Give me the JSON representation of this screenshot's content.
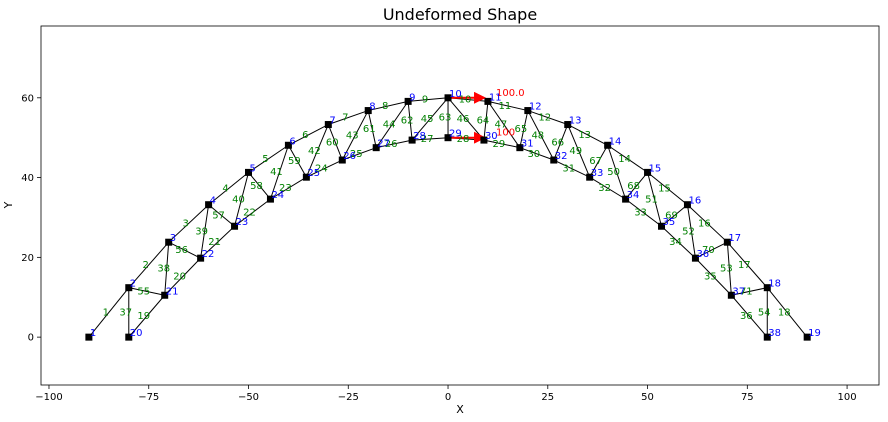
{
  "chart_data": {
    "type": "scatter",
    "title": "Undeformed Shape",
    "xlabel": "X",
    "ylabel": "Y",
    "xlim": [
      -102,
      108
    ],
    "ylim": [
      -12,
      78
    ],
    "xticks": [
      -100,
      -75,
      -50,
      -25,
      0,
      25,
      50,
      75,
      100
    ],
    "yticks": [
      0,
      20,
      40,
      60
    ],
    "xtick_labels": [
      "−100",
      "−75",
      "−50",
      "−25",
      "0",
      "25",
      "50",
      "75",
      "100"
    ],
    "ytick_labels": [
      "0",
      "20",
      "40",
      "60"
    ],
    "colors": {
      "node_marker": "#000000",
      "element_line": "#000000",
      "node_label": "#0000ff",
      "element_label": "#008000",
      "load": "#ff0000"
    },
    "nodes": [
      {
        "id": "1",
        "x": -90,
        "y": 0
      },
      {
        "id": "2",
        "x": -80,
        "y": 12.4
      },
      {
        "id": "3",
        "x": -70,
        "y": 23.8
      },
      {
        "id": "4",
        "x": -60,
        "y": 33.2
      },
      {
        "id": "5",
        "x": -50,
        "y": 41.3
      },
      {
        "id": "6",
        "x": -40,
        "y": 48.1
      },
      {
        "id": "7",
        "x": -30,
        "y": 53.3
      },
      {
        "id": "8",
        "x": -20,
        "y": 56.8
      },
      {
        "id": "9",
        "x": -10,
        "y": 59.1
      },
      {
        "id": "10",
        "x": 0,
        "y": 60
      },
      {
        "id": "11",
        "x": 10,
        "y": 59.1
      },
      {
        "id": "12",
        "x": 20,
        "y": 56.8
      },
      {
        "id": "13",
        "x": 30,
        "y": 53.3
      },
      {
        "id": "14",
        "x": 40,
        "y": 48.1
      },
      {
        "id": "15",
        "x": 50,
        "y": 41.3
      },
      {
        "id": "16",
        "x": 60,
        "y": 33.2
      },
      {
        "id": "17",
        "x": 70,
        "y": 23.8
      },
      {
        "id": "18",
        "x": 80,
        "y": 12.4
      },
      {
        "id": "19",
        "x": 90,
        "y": 0
      },
      {
        "id": "20",
        "x": -80,
        "y": 0
      },
      {
        "id": "21",
        "x": -71,
        "y": 10.5
      },
      {
        "id": "22",
        "x": -62,
        "y": 19.8
      },
      {
        "id": "23",
        "x": -53.5,
        "y": 27.8
      },
      {
        "id": "24",
        "x": -44.5,
        "y": 34.6
      },
      {
        "id": "25",
        "x": -35.5,
        "y": 40.1
      },
      {
        "id": "26",
        "x": -26.5,
        "y": 44.4
      },
      {
        "id": "27",
        "x": -18,
        "y": 47.5
      },
      {
        "id": "28",
        "x": -9,
        "y": 49.4
      },
      {
        "id": "29",
        "x": 0,
        "y": 50
      },
      {
        "id": "30",
        "x": 9,
        "y": 49.4
      },
      {
        "id": "31",
        "x": 18,
        "y": 47.5
      },
      {
        "id": "32",
        "x": 26.5,
        "y": 44.4
      },
      {
        "id": "33",
        "x": 35.5,
        "y": 40.1
      },
      {
        "id": "34",
        "x": 44.5,
        "y": 34.6
      },
      {
        "id": "35",
        "x": 53.5,
        "y": 27.8
      },
      {
        "id": "36",
        "x": 62,
        "y": 19.8
      },
      {
        "id": "37",
        "x": 71,
        "y": 10.5
      },
      {
        "id": "38",
        "x": 80,
        "y": 0
      }
    ],
    "elements": [
      {
        "id": "1",
        "from": "1",
        "to": "2"
      },
      {
        "id": "2",
        "from": "2",
        "to": "3"
      },
      {
        "id": "3",
        "from": "3",
        "to": "4"
      },
      {
        "id": "4",
        "from": "4",
        "to": "5"
      },
      {
        "id": "5",
        "from": "5",
        "to": "6"
      },
      {
        "id": "6",
        "from": "6",
        "to": "7"
      },
      {
        "id": "7",
        "from": "7",
        "to": "8"
      },
      {
        "id": "8",
        "from": "8",
        "to": "9"
      },
      {
        "id": "9",
        "from": "9",
        "to": "10"
      },
      {
        "id": "10",
        "from": "10",
        "to": "11"
      },
      {
        "id": "11",
        "from": "11",
        "to": "12"
      },
      {
        "id": "12",
        "from": "12",
        "to": "13"
      },
      {
        "id": "13",
        "from": "13",
        "to": "14"
      },
      {
        "id": "14",
        "from": "14",
        "to": "15"
      },
      {
        "id": "15",
        "from": "15",
        "to": "16"
      },
      {
        "id": "16",
        "from": "16",
        "to": "17"
      },
      {
        "id": "17",
        "from": "17",
        "to": "18"
      },
      {
        "id": "18",
        "from": "18",
        "to": "19"
      },
      {
        "id": "19",
        "from": "20",
        "to": "21"
      },
      {
        "id": "20",
        "from": "21",
        "to": "22"
      },
      {
        "id": "21",
        "from": "22",
        "to": "23"
      },
      {
        "id": "22",
        "from": "23",
        "to": "24"
      },
      {
        "id": "23",
        "from": "24",
        "to": "25"
      },
      {
        "id": "24",
        "from": "25",
        "to": "26"
      },
      {
        "id": "25",
        "from": "26",
        "to": "27"
      },
      {
        "id": "26",
        "from": "27",
        "to": "28"
      },
      {
        "id": "27",
        "from": "28",
        "to": "29"
      },
      {
        "id": "28",
        "from": "29",
        "to": "30"
      },
      {
        "id": "29",
        "from": "30",
        "to": "31"
      },
      {
        "id": "30",
        "from": "31",
        "to": "32"
      },
      {
        "id": "31",
        "from": "32",
        "to": "33"
      },
      {
        "id": "32",
        "from": "33",
        "to": "34"
      },
      {
        "id": "33",
        "from": "34",
        "to": "35"
      },
      {
        "id": "34",
        "from": "35",
        "to": "36"
      },
      {
        "id": "35",
        "from": "36",
        "to": "37"
      },
      {
        "id": "36",
        "from": "37",
        "to": "38"
      },
      {
        "id": "37",
        "from": "2",
        "to": "20"
      },
      {
        "id": "38",
        "from": "3",
        "to": "21"
      },
      {
        "id": "39",
        "from": "4",
        "to": "22"
      },
      {
        "id": "40",
        "from": "5",
        "to": "23"
      },
      {
        "id": "41",
        "from": "6",
        "to": "24"
      },
      {
        "id": "42",
        "from": "7",
        "to": "25"
      },
      {
        "id": "43",
        "from": "8",
        "to": "26"
      },
      {
        "id": "44",
        "from": "9",
        "to": "27"
      },
      {
        "id": "45",
        "from": "10",
        "to": "28"
      },
      {
        "id": "46",
        "from": "10",
        "to": "30"
      },
      {
        "id": "47",
        "from": "11",
        "to": "31"
      },
      {
        "id": "48",
        "from": "12",
        "to": "32"
      },
      {
        "id": "49",
        "from": "13",
        "to": "33"
      },
      {
        "id": "50",
        "from": "14",
        "to": "34"
      },
      {
        "id": "51",
        "from": "15",
        "to": "35"
      },
      {
        "id": "52",
        "from": "16",
        "to": "36"
      },
      {
        "id": "53",
        "from": "17",
        "to": "37"
      },
      {
        "id": "54",
        "from": "18",
        "to": "38"
      },
      {
        "id": "55",
        "from": "2",
        "to": "21"
      },
      {
        "id": "56",
        "from": "3",
        "to": "22"
      },
      {
        "id": "57",
        "from": "4",
        "to": "23"
      },
      {
        "id": "58",
        "from": "5",
        "to": "24"
      },
      {
        "id": "59",
        "from": "6",
        "to": "25"
      },
      {
        "id": "60",
        "from": "7",
        "to": "26"
      },
      {
        "id": "61",
        "from": "8",
        "to": "27"
      },
      {
        "id": "62",
        "from": "9",
        "to": "28"
      },
      {
        "id": "63",
        "from": "10",
        "to": "29"
      },
      {
        "id": "64",
        "from": "11",
        "to": "30"
      },
      {
        "id": "65",
        "from": "12",
        "to": "31"
      },
      {
        "id": "66",
        "from": "13",
        "to": "32"
      },
      {
        "id": "67",
        "from": "14",
        "to": "33"
      },
      {
        "id": "68",
        "from": "15",
        "to": "34"
      },
      {
        "id": "69",
        "from": "16",
        "to": "35"
      },
      {
        "id": "70",
        "from": "17",
        "to": "36"
      },
      {
        "id": "71",
        "from": "18",
        "to": "37"
      }
    ],
    "loads": [
      {
        "node": "10",
        "label": "100.0",
        "direction": "+x"
      },
      {
        "node": "29",
        "label": "100",
        "direction": "+x"
      }
    ]
  }
}
